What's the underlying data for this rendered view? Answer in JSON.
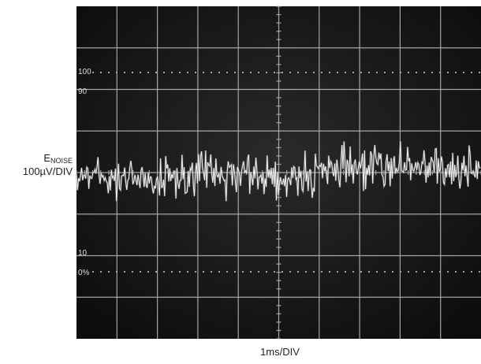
{
  "y_label": {
    "symbol": "E",
    "subscript": "NOISE",
    "scale": "100µV/DIV"
  },
  "x_label": "1ms/DIV",
  "screen_labels": [
    "100",
    "90",
    "10",
    "0%"
  ]
}
